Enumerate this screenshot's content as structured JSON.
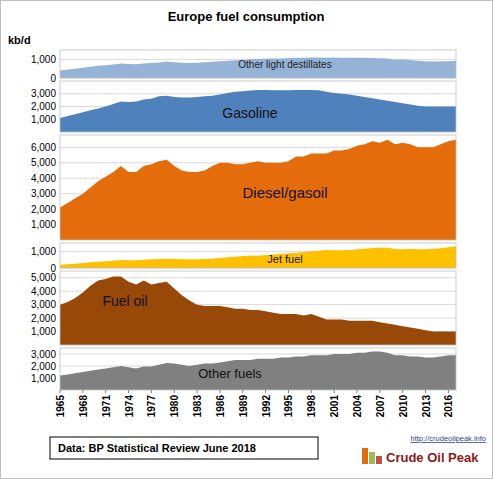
{
  "title": "Europe fuel consumption",
  "unit": "kb/d",
  "source": "Data: BP Statistical Review June 2018",
  "watermark_url": "http://crudeoilpeak.info",
  "watermark": "Crude Oil Peak",
  "chart_data": [
    {
      "type": "area",
      "x": [
        1965,
        1966,
        1967,
        1968,
        1969,
        1970,
        1971,
        1972,
        1973,
        1974,
        1975,
        1976,
        1977,
        1978,
        1979,
        1980,
        1981,
        1982,
        1983,
        1984,
        1985,
        1986,
        1987,
        1988,
        1989,
        1990,
        1991,
        1992,
        1993,
        1994,
        1995,
        1996,
        1997,
        1998,
        1999,
        2000,
        2001,
        2002,
        2003,
        2004,
        2005,
        2006,
        2007,
        2008,
        2009,
        2010,
        2011,
        2012,
        2013,
        2014,
        2015,
        2016,
        2017
      ],
      "xlim": [
        1965,
        2017
      ],
      "ylim": [
        0,
        1500
      ],
      "yticks": [
        0,
        {
          "value": 1000,
          "label": "1,000"
        }
      ],
      "grid": true,
      "tick_labels": "y",
      "series": [
        {
          "name": "Other light destillates",
          "color": "#95b3d7",
          "values": [
            400,
            450,
            500,
            550,
            600,
            650,
            680,
            720,
            780,
            750,
            740,
            780,
            800,
            830,
            880,
            850,
            820,
            800,
            820,
            850,
            870,
            900,
            920,
            950,
            970,
            1000,
            1020,
            1030,
            1040,
            1050,
            1060,
            1080,
            1090,
            1100,
            1100,
            1090,
            1100,
            1090,
            1080,
            1090,
            1080,
            1070,
            1060,
            1040,
            980,
            1000,
            960,
            920,
            900,
            880,
            900,
            900,
            920
          ]
        }
      ]
    },
    {
      "type": "area",
      "x": [
        1965,
        1966,
        1967,
        1968,
        1969,
        1970,
        1971,
        1972,
        1973,
        1974,
        1975,
        1976,
        1977,
        1978,
        1979,
        1980,
        1981,
        1982,
        1983,
        1984,
        1985,
        1986,
        1987,
        1988,
        1989,
        1990,
        1991,
        1992,
        1993,
        1994,
        1995,
        1996,
        1997,
        1998,
        1999,
        2000,
        2001,
        2002,
        2003,
        2004,
        2005,
        2006,
        2007,
        2008,
        2009,
        2010,
        2011,
        2012,
        2013,
        2014,
        2015,
        2016,
        2017
      ],
      "xlim": [
        1965,
        2017
      ],
      "ylim": [
        0,
        4000
      ],
      "yticks": [
        {
          "value": 1000,
          "label": "1,000"
        },
        {
          "value": 2000,
          "label": "2,000"
        },
        {
          "value": 3000,
          "label": "3,000"
        }
      ],
      "grid": true,
      "tick_labels": "y",
      "series": [
        {
          "name": "Gasoline",
          "color": "#4f81bd",
          "values": [
            1100,
            1250,
            1400,
            1550,
            1700,
            1850,
            2000,
            2200,
            2400,
            2350,
            2400,
            2550,
            2600,
            2800,
            2850,
            2750,
            2700,
            2700,
            2750,
            2800,
            2850,
            2950,
            3050,
            3150,
            3200,
            3250,
            3300,
            3300,
            3280,
            3270,
            3280,
            3300,
            3300,
            3300,
            3270,
            3150,
            3050,
            3000,
            2950,
            2850,
            2750,
            2650,
            2550,
            2450,
            2350,
            2250,
            2150,
            2050,
            2000,
            2000,
            2000,
            2000,
            2000
          ]
        }
      ]
    },
    {
      "type": "area",
      "x": [
        1965,
        1966,
        1967,
        1968,
        1969,
        1970,
        1971,
        1972,
        1973,
        1974,
        1975,
        1976,
        1977,
        1978,
        1979,
        1980,
        1981,
        1982,
        1983,
        1984,
        1985,
        1986,
        1987,
        1988,
        1989,
        1990,
        1991,
        1992,
        1993,
        1994,
        1995,
        1996,
        1997,
        1998,
        1999,
        2000,
        2001,
        2002,
        2003,
        2004,
        2005,
        2006,
        2007,
        2008,
        2009,
        2010,
        2011,
        2012,
        2013,
        2014,
        2015,
        2016,
        2017
      ],
      "xlim": [
        1965,
        2017
      ],
      "ylim": [
        0,
        6800
      ],
      "yticks": [
        {
          "value": 1000,
          "label": "1,000"
        },
        {
          "value": 2000,
          "label": "2,000"
        },
        {
          "value": 3000,
          "label": "3,000"
        },
        {
          "value": 4000,
          "label": "4,000"
        },
        {
          "value": 5000,
          "label": "5,000"
        },
        {
          "value": 6000,
          "label": "6,000"
        }
      ],
      "grid": true,
      "tick_labels": "y",
      "series": [
        {
          "name": "Diesel/gasoil",
          "color": "#e46c0a",
          "values": [
            2100,
            2400,
            2700,
            3000,
            3400,
            3800,
            4100,
            4400,
            4800,
            4400,
            4400,
            4800,
            4900,
            5100,
            5200,
            4800,
            4500,
            4400,
            4400,
            4500,
            4800,
            5000,
            5000,
            4900,
            4900,
            5000,
            5100,
            5000,
            5000,
            5000,
            5100,
            5400,
            5400,
            5600,
            5600,
            5600,
            5800,
            5800,
            5900,
            6100,
            6200,
            6400,
            6300,
            6500,
            6200,
            6300,
            6200,
            6000,
            6000,
            6000,
            6200,
            6400,
            6500
          ]
        }
      ]
    },
    {
      "type": "area",
      "x": [
        1965,
        1966,
        1967,
        1968,
        1969,
        1970,
        1971,
        1972,
        1973,
        1974,
        1975,
        1976,
        1977,
        1978,
        1979,
        1980,
        1981,
        1982,
        1983,
        1984,
        1985,
        1986,
        1987,
        1988,
        1989,
        1990,
        1991,
        1992,
        1993,
        1994,
        1995,
        1996,
        1997,
        1998,
        1999,
        2000,
        2001,
        2002,
        2003,
        2004,
        2005,
        2006,
        2007,
        2008,
        2009,
        2010,
        2011,
        2012,
        2013,
        2014,
        2015,
        2016,
        2017
      ],
      "xlim": [
        1965,
        2017
      ],
      "ylim": [
        0,
        1500
      ],
      "yticks": [
        0,
        {
          "value": 1000,
          "label": "1,000"
        }
      ],
      "grid": true,
      "tick_labels": "y",
      "series": [
        {
          "name": "Jet fuel",
          "color": "#ffc000",
          "values": [
            200,
            230,
            260,
            300,
            340,
            380,
            410,
            440,
            480,
            470,
            470,
            500,
            520,
            540,
            560,
            550,
            530,
            520,
            520,
            540,
            560,
            600,
            640,
            680,
            720,
            750,
            740,
            780,
            810,
            850,
            880,
            920,
            960,
            1000,
            1040,
            1080,
            1070,
            1060,
            1080,
            1120,
            1160,
            1200,
            1210,
            1220,
            1140,
            1120,
            1150,
            1130,
            1130,
            1150,
            1190,
            1240,
            1300
          ]
        }
      ]
    },
    {
      "type": "area",
      "x": [
        1965,
        1966,
        1967,
        1968,
        1969,
        1970,
        1971,
        1972,
        1973,
        1974,
        1975,
        1976,
        1977,
        1978,
        1979,
        1980,
        1981,
        1982,
        1983,
        1984,
        1985,
        1986,
        1987,
        1988,
        1989,
        1990,
        1991,
        1992,
        1993,
        1994,
        1995,
        1996,
        1997,
        1998,
        1999,
        2000,
        2001,
        2002,
        2003,
        2004,
        2005,
        2006,
        2007,
        2008,
        2009,
        2010,
        2011,
        2012,
        2013,
        2014,
        2015,
        2016,
        2017
      ],
      "xlim": [
        1965,
        2017
      ],
      "ylim": [
        0,
        5500
      ],
      "yticks": [
        {
          "value": 1000,
          "label": "1,000"
        },
        {
          "value": 2000,
          "label": "2,000"
        },
        {
          "value": 3000,
          "label": "3,000"
        },
        {
          "value": 4000,
          "label": "4,000"
        },
        {
          "value": 5000,
          "label": "5,000"
        }
      ],
      "grid": true,
      "tick_labels": "y",
      "series": [
        {
          "name": "Fuel oil",
          "color": "#984807",
          "values": [
            3000,
            3200,
            3500,
            3900,
            4400,
            4800,
            4900,
            5100,
            5100,
            4700,
            4500,
            4800,
            4500,
            4600,
            4700,
            4200,
            3700,
            3300,
            3000,
            2900,
            2900,
            2900,
            2800,
            2700,
            2700,
            2600,
            2600,
            2500,
            2400,
            2300,
            2300,
            2300,
            2200,
            2300,
            2100,
            1900,
            1900,
            1900,
            1800,
            1800,
            1800,
            1800,
            1700,
            1600,
            1500,
            1400,
            1300,
            1200,
            1100,
            1000,
            1000,
            1000,
            1000
          ]
        }
      ]
    },
    {
      "type": "area",
      "x": [
        1965,
        1966,
        1967,
        1968,
        1969,
        1970,
        1971,
        1972,
        1973,
        1974,
        1975,
        1976,
        1977,
        1978,
        1979,
        1980,
        1981,
        1982,
        1983,
        1984,
        1985,
        1986,
        1987,
        1988,
        1989,
        1990,
        1991,
        1992,
        1993,
        1994,
        1995,
        1996,
        1997,
        1998,
        1999,
        2000,
        2001,
        2002,
        2003,
        2004,
        2005,
        2006,
        2007,
        2008,
        2009,
        2010,
        2011,
        2012,
        2013,
        2014,
        2015,
        2016,
        2017
      ],
      "xlim": [
        1965,
        2017
      ],
      "xticks": [
        1965,
        1968,
        1971,
        1974,
        1977,
        1980,
        1983,
        1986,
        1989,
        1992,
        1995,
        1998,
        2001,
        2004,
        2007,
        2010,
        2013,
        2016
      ],
      "ylim": [
        0,
        3500
      ],
      "yticks": [
        {
          "value": 1000,
          "label": "1,000"
        },
        {
          "value": 2000,
          "label": "2,000"
        },
        {
          "value": 3000,
          "label": "3,000"
        }
      ],
      "grid": true,
      "series": [
        {
          "name": "Other fuels",
          "color": "#808080",
          "values": [
            1200,
            1300,
            1400,
            1500,
            1600,
            1700,
            1800,
            1900,
            2000,
            1900,
            1800,
            1950,
            1950,
            2100,
            2250,
            2200,
            2100,
            2000,
            2100,
            2200,
            2200,
            2300,
            2400,
            2500,
            2500,
            2500,
            2600,
            2600,
            2600,
            2700,
            2700,
            2800,
            2800,
            2900,
            2900,
            2900,
            3000,
            3000,
            3000,
            3100,
            3100,
            3200,
            3200,
            3100,
            2900,
            2900,
            2800,
            2800,
            2700,
            2700,
            2800,
            2900,
            2900
          ]
        }
      ]
    }
  ]
}
